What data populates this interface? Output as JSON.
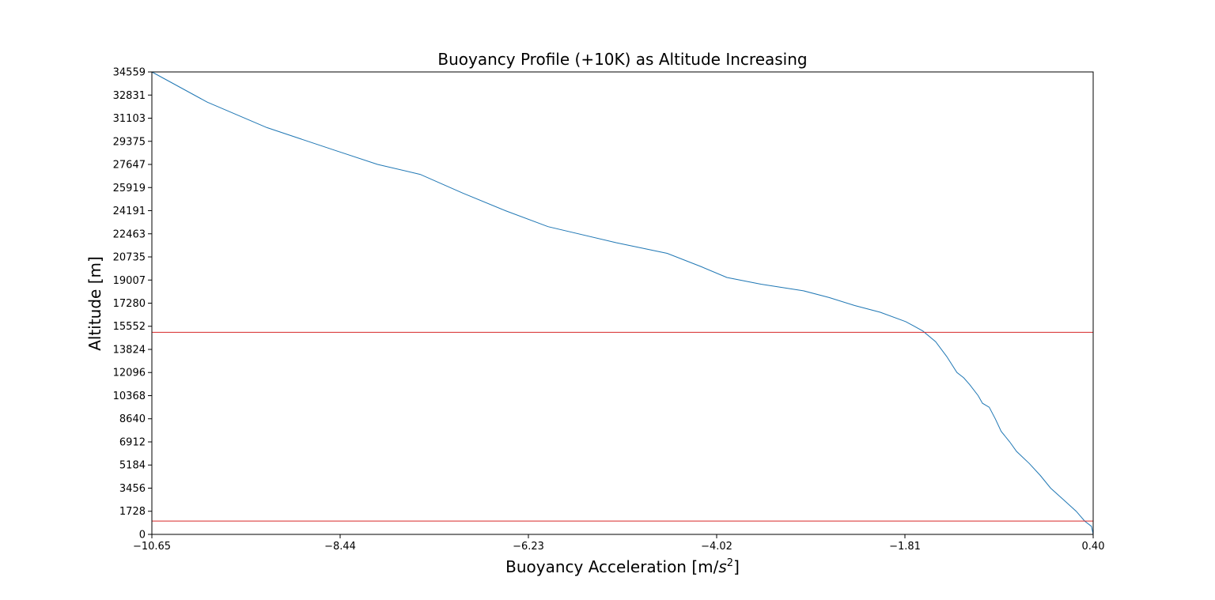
{
  "chart_data": {
    "type": "line",
    "title": "Buoyancy Profile (+10K) as Altitude Increasing",
    "xlabel_main": "Buoyancy Acceleration [m/",
    "xlabel_sym": "s",
    "xlabel_sup": "2",
    "xlabel_end": "]",
    "ylabel": "Altitude [m]",
    "xlim": [
      -10.65,
      0.4
    ],
    "ylim": [
      0,
      34559
    ],
    "x_ticks": [
      "-10.65",
      "-8.44",
      "-6.23",
      "-4.02",
      "-1.81",
      "0.40"
    ],
    "x_tick_values": [
      -10.65,
      -8.44,
      -6.23,
      -4.02,
      -1.81,
      0.4
    ],
    "y_ticks": [
      "0",
      "1728",
      "3456",
      "5184",
      "6912",
      "8640",
      "10368",
      "12096",
      "13824",
      "15552",
      "17280",
      "19007",
      "20735",
      "22463",
      "24191",
      "25919",
      "27647",
      "29375",
      "31103",
      "32831",
      "34559"
    ],
    "y_tick_values": [
      0,
      1728,
      3456,
      5184,
      6912,
      8640,
      10368,
      12096,
      13824,
      15552,
      17280,
      19007,
      20735,
      22463,
      24191,
      25919,
      27647,
      29375,
      31103,
      32831,
      34559
    ],
    "series": [
      {
        "color": "#1f77b4",
        "x": [
          0.4,
          0.38,
          0.3,
          0.2,
          0.05,
          -0.1,
          -0.22,
          -0.35,
          -0.5,
          -0.58,
          -0.68,
          -0.75,
          -0.82,
          -0.9,
          -0.95,
          -1.05,
          -1.12,
          -1.2,
          -1.32,
          -1.45,
          -1.6,
          -1.7,
          -1.8,
          -2.1,
          -2.4,
          -2.7,
          -3.0,
          -3.5,
          -3.9,
          -4.2,
          -4.6,
          -5.2,
          -6.0,
          -6.5,
          -7.0,
          -7.5,
          -8.0,
          -8.5,
          -9.3,
          -10.0,
          -10.65
        ],
        "y": [
          0,
          600,
          1000,
          1728,
          2600,
          3456,
          4400,
          5300,
          6200,
          6912,
          7700,
          8640,
          9500,
          9800,
          10368,
          11200,
          11700,
          12096,
          13300,
          14400,
          15200,
          15552,
          15900,
          16600,
          17100,
          17700,
          18200,
          18700,
          19200,
          20000,
          21000,
          21800,
          23000,
          24191,
          25500,
          26900,
          27647,
          28700,
          30400,
          32300,
          34559
        ]
      }
    ],
    "hlines": [
      {
        "y": 15100,
        "color": "#d62728"
      },
      {
        "y": 1000,
        "color": "#d62728"
      }
    ],
    "grid": false,
    "legend": "none"
  }
}
